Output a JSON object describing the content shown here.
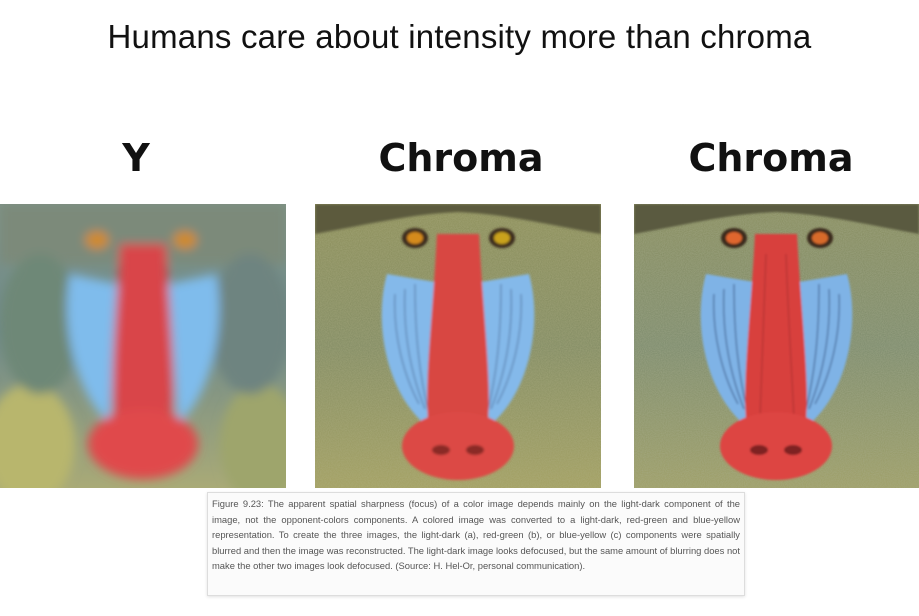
{
  "slide": {
    "title": "Humans care about intensity more than chroma"
  },
  "panels": [
    {
      "label": "Y",
      "image": "mandrill-blurred-light-dark-icon"
    },
    {
      "label": "Chroma",
      "image": "mandrill-blurred-red-green-icon"
    },
    {
      "label": "Chroma",
      "image": "mandrill-blurred-blue-yellow-icon"
    }
  ],
  "caption": {
    "text": "Figure 9.23: The apparent spatial sharpness (focus) of a color image depends mainly on the light-dark component of the image, not the opponent-colors components. A colored image was converted to a light-dark, red-green and blue-yellow representation. To create the three images, the light-dark (a), red-green (b), or blue-yellow (c) components were spatially blurred and then the image was reconstructed. The light-dark image looks defocused, but the same amount of blurring does not make the other two images look defocused. (Source: H. Hel-Or, personal communication)."
  },
  "colors": {
    "nose": "#e0413f",
    "cheek": "#7fb6ea",
    "fur": "#8f8f55",
    "eye": "#d98a1a"
  }
}
